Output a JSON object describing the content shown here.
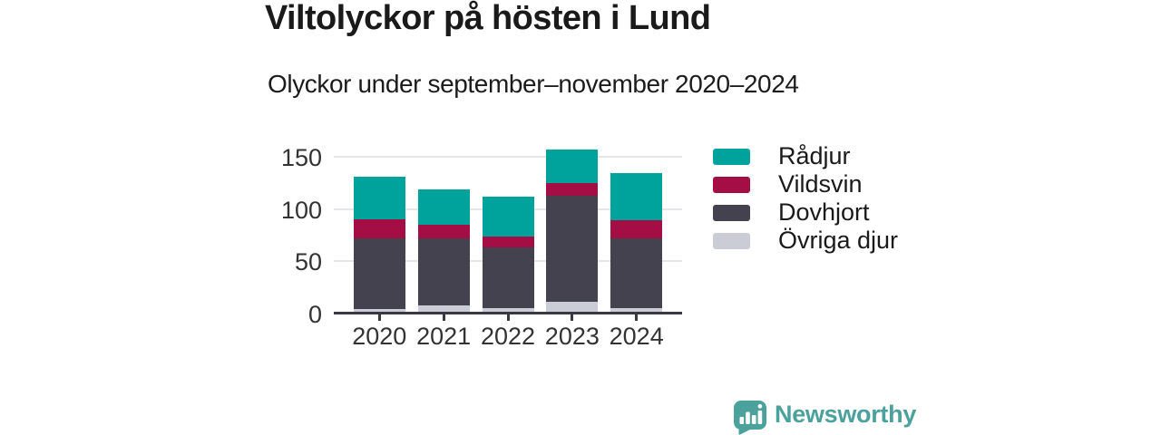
{
  "header": {
    "title": "Viltolyckor på hösten i Lund",
    "subtitle": "Olyckor under september–november 2020–2024"
  },
  "chart_data": {
    "type": "bar",
    "stacked": true,
    "title": "Viltolyckor på hösten i Lund",
    "subtitle": "Olyckor under september–november 2020–2024",
    "categories": [
      "2020",
      "2021",
      "2022",
      "2023",
      "2024"
    ],
    "series": [
      {
        "name": "Övriga djur",
        "color": "#cacdd6",
        "values": [
          4,
          7,
          5,
          11,
          5
        ]
      },
      {
        "name": "Dovhjort",
        "color": "#44424f",
        "values": [
          68,
          65,
          58,
          102,
          67
        ]
      },
      {
        "name": "Vildsvin",
        "color": "#a50d45",
        "values": [
          18,
          13,
          11,
          12,
          17
        ]
      },
      {
        "name": "Rådjur",
        "color": "#00a39b",
        "values": [
          41,
          34,
          38,
          32,
          46
        ]
      }
    ],
    "totals": [
      131,
      119,
      112,
      157,
      135
    ],
    "xlabel": "",
    "ylabel": "",
    "yticks": [
      0,
      50,
      100,
      150
    ],
    "ylim": [
      0,
      160
    ],
    "grid": "horizontal",
    "legend_position": "right",
    "legend_order_top_to_bottom": [
      "Rådjur",
      "Vildsvin",
      "Dovhjort",
      "Övriga djur"
    ]
  },
  "axis": {
    "color_axis_line": "#3a3943",
    "color_gridline": "#e6e6ea",
    "color_tick_text": "#333333"
  },
  "footer": {
    "brand": "Newsworthy",
    "brand_color": "#4ba19b",
    "logo_icon": "bar-chart-speech-bubble"
  }
}
